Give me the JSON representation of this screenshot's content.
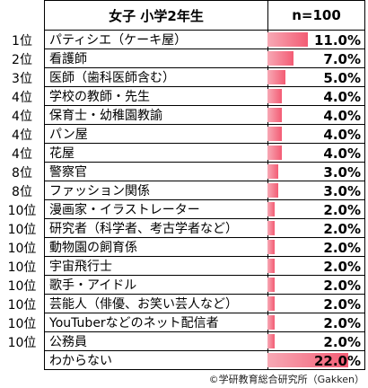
{
  "chart_data": {
    "type": "table",
    "title": "",
    "header": {
      "category": "女子 小学2年生",
      "value": "n=100"
    },
    "rows": [
      {
        "rank": "1位",
        "label": "パティシエ（ケーキ屋）",
        "value": 11.0,
        "display": "11.0%"
      },
      {
        "rank": "2位",
        "label": "看護師",
        "value": 7.0,
        "display": "7.0%"
      },
      {
        "rank": "3位",
        "label": "医師（歯科医師含む）",
        "value": 5.0,
        "display": "5.0%"
      },
      {
        "rank": "4位",
        "label": "学校の教師・先生",
        "value": 4.0,
        "display": "4.0%"
      },
      {
        "rank": "4位",
        "label": "保育士・幼稚園教諭",
        "value": 4.0,
        "display": "4.0%"
      },
      {
        "rank": "4位",
        "label": "パン屋",
        "value": 4.0,
        "display": "4.0%"
      },
      {
        "rank": "4位",
        "label": "花屋",
        "value": 4.0,
        "display": "4.0%"
      },
      {
        "rank": "8位",
        "label": "警察官",
        "value": 3.0,
        "display": "3.0%"
      },
      {
        "rank": "8位",
        "label": "ファッション関係",
        "value": 3.0,
        "display": "3.0%"
      },
      {
        "rank": "10位",
        "label": "漫画家・イラストレーター",
        "value": 2.0,
        "display": "2.0%"
      },
      {
        "rank": "10位",
        "label": "研究者（科学者、考古学者など）",
        "value": 2.0,
        "display": "2.0%"
      },
      {
        "rank": "10位",
        "label": "動物園の飼育係",
        "value": 2.0,
        "display": "2.0%"
      },
      {
        "rank": "10位",
        "label": "宇宙飛行士",
        "value": 2.0,
        "display": "2.0%"
      },
      {
        "rank": "10位",
        "label": "歌手・アイドル",
        "value": 2.0,
        "display": "2.0%"
      },
      {
        "rank": "10位",
        "label": "芸能人（俳優、お笑い芸人など）",
        "value": 2.0,
        "display": "2.0%"
      },
      {
        "rank": "10位",
        "label": "YouTuberなどのネット配信者",
        "value": 2.0,
        "display": "2.0%"
      },
      {
        "rank": "10位",
        "label": "公務員",
        "value": 2.0,
        "display": "2.0%"
      },
      {
        "rank": "",
        "label": "わからない",
        "value": 22.0,
        "display": "22.0%"
      }
    ],
    "bar_color": "#f35c74",
    "source": "©学研教育総合研究所（Gakken）"
  }
}
